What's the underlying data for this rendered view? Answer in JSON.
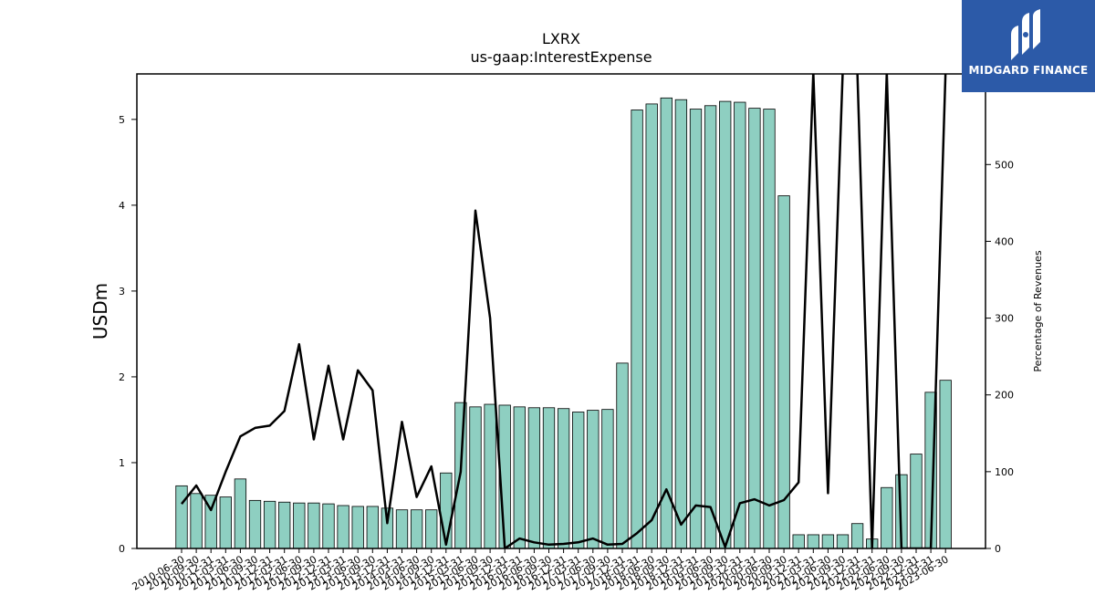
{
  "logo": {
    "name": "MIDGARD FINANCE"
  },
  "chart_data": {
    "type": "bar",
    "title": "LXRX",
    "subtitle": "us-gaap:InterestExpense",
    "ylabel": "USDm",
    "y2label": "Percentage of Revenues",
    "ylim": [
      0,
      5.53
    ],
    "y2lim": [
      0,
      618
    ],
    "yticks": [
      0,
      1,
      2,
      3,
      4,
      5
    ],
    "y2ticks": [
      0,
      100,
      200,
      300,
      400,
      500
    ],
    "bar_color": "#8ecfc1",
    "line_color": "#000000",
    "grid": false,
    "categories": [
      "2010-06-30",
      "2010-09-30",
      "2010-12-31",
      "2011-03-31",
      "2011-06-30",
      "2011-09-30",
      "2011-12-31",
      "2012-03-31",
      "2012-06-30",
      "2012-09-30",
      "2012-12-31",
      "2013-03-31",
      "2013-06-30",
      "2013-09-30",
      "2013-12-31",
      "2014-03-31",
      "2014-06-30",
      "2014-09-30",
      "2014-12-31",
      "2015-03-31",
      "2015-06-30",
      "2015-09-30",
      "2015-12-31",
      "2016-03-31",
      "2016-06-30",
      "2016-09-30",
      "2016-12-31",
      "2017-03-31",
      "2017-06-30",
      "2017-09-30",
      "2017-12-31",
      "2018-03-31",
      "2018-06-30",
      "2018-09-30",
      "2018-12-31",
      "2019-03-31",
      "2019-06-30",
      "2019-09-30",
      "2019-12-31",
      "2020-03-31",
      "2020-06-30",
      "2020-09-30",
      "2020-12-31",
      "2021-03-31",
      "2021-06-30",
      "2021-09-30",
      "2021-12-31",
      "2022-03-31",
      "2022-06-30",
      "2022-09-30",
      "2022-12-31",
      "2023-03-31",
      "2023-06-30"
    ],
    "tick_labels": [
      "2010-06-30",
      "2010-09-30",
      "2010-12-31",
      "2011-03-31",
      "2011-06-30",
      "2011-09-30",
      "2011-12-31",
      "2012-03-31",
      "2012-06-30",
      "2012-09-30",
      "2012-12-31",
      "2013-03-31",
      "2013-06-30",
      "2013-09-30",
      "2013-12-31",
      "2014-03-31",
      "2014-06-30",
      "2014-09-30",
      "2014-12-31",
      "2015-03-31",
      "2015-06-30",
      "2015-09-30",
      "2015-12-31",
      "2016-03-31",
      "2016-06-30",
      "2016-09-30",
      "2016-12-31",
      "2017-03-31",
      "2017-06-30",
      "2017-09-30",
      "2017-12-31",
      "2018-03-31",
      "2018-06-30",
      "2018-09-30",
      "2018-12-31",
      "2019-03-31",
      "2019-06-30",
      "2019-09-30",
      "2019-12-31",
      "2020-03-31",
      "2020-06-30",
      "2020-09-30",
      "2020-12-31",
      "2021-03-31",
      "2021-06-30",
      "2021-09-30",
      "2021-12-31",
      "2022-03-31",
      "2022-06-30",
      "2022-09-30",
      "2022-12-31",
      "2023-03-31",
      "2023-06-30"
    ],
    "series": [
      {
        "axis": "left",
        "values": [
          0.73,
          0.64,
          0.62,
          0.6,
          0.81,
          0.56,
          0.55,
          0.54,
          0.53,
          0.53,
          0.52,
          0.5,
          0.49,
          0.49,
          0.47,
          0.45,
          0.45,
          0.45,
          0.88,
          1.7,
          1.65,
          1.68,
          1.67,
          1.65,
          1.64,
          1.64,
          1.63,
          1.59,
          1.61,
          1.62,
          2.16,
          5.11,
          5.18,
          5.25,
          5.23,
          5.12,
          5.16,
          5.21,
          5.2,
          5.13,
          5.12,
          4.11,
          0.16,
          0.16,
          0.16,
          0.16,
          0.29,
          0.11,
          0.71,
          0.86,
          1.1,
          1.82,
          1.96
        ]
      },
      {
        "axis": "right",
        "values": [
          58,
          82,
          50,
          100,
          146,
          157,
          160,
          179,
          266,
          142,
          238,
          142,
          232,
          206,
          33,
          165,
          67,
          107,
          5,
          100,
          440,
          300,
          0,
          13,
          8,
          5,
          6,
          8,
          13,
          5,
          6,
          20,
          37,
          77,
          31,
          56,
          54,
          2,
          59,
          64,
          56,
          63,
          86,
          620,
          72,
          620,
          620,
          0,
          620,
          0,
          0,
          0,
          620
        ]
      }
    ]
  }
}
